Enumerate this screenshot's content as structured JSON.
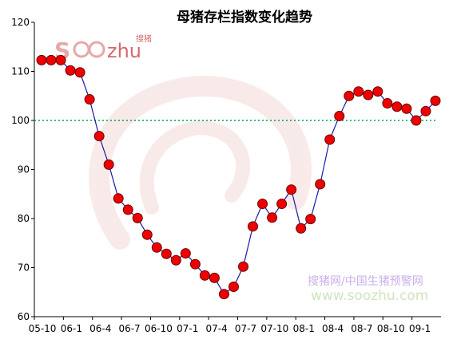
{
  "chart_data": {
    "type": "line",
    "title": "母猪存栏指数变化趋势",
    "y_ticks": [
      "120",
      "110",
      "100",
      "90",
      "80",
      "70",
      "60"
    ],
    "ylim": [
      60,
      120
    ],
    "x_tick_labels": [
      "05-10",
      "06-1",
      "06-4",
      "06-7",
      "06-10",
      "07-1",
      "07-4",
      "07-7",
      "07-10",
      "08-1",
      "08-4",
      "08-7",
      "08-10",
      "09-1"
    ],
    "reference_line": {
      "value": 100,
      "color": "#00a050",
      "style": "dotted"
    },
    "series": [
      {
        "line_color": "#1a1aa6",
        "marker_color": "#ee0000",
        "values": [
          112.3,
          112.3,
          112.3,
          110.2,
          109.8,
          104.3,
          96.8,
          91.0,
          84.1,
          81.8,
          80.1,
          76.7,
          74.1,
          72.8,
          71.5,
          72.9,
          70.7,
          68.4,
          67.9,
          64.6,
          66.1,
          70.2,
          78.4,
          83.0,
          80.2,
          83.0,
          85.9,
          78.0,
          79.9,
          87.0,
          96.1,
          100.9,
          105.0,
          105.9,
          105.2,
          105.9,
          103.5,
          102.8,
          102.4,
          100.0,
          101.9,
          104.0
        ]
      }
    ],
    "grid": false,
    "legend": "none"
  },
  "logo": {
    "prefix": "S",
    "suffix": "zhu",
    "cn": "搜猪"
  },
  "watermark": {
    "line1": "搜猪网/中国生猪预警网",
    "line2": "www.soozhu.com"
  },
  "colors": {
    "axis": "#000000",
    "line": "#1a1aa6",
    "marker_fill": "#ee0000",
    "marker_stroke": "#6a0000",
    "reference": "#00a050"
  }
}
